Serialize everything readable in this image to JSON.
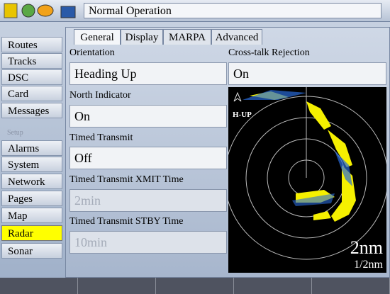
{
  "header": {
    "title": "Normal Operation"
  },
  "sidebar": {
    "items": [
      "Routes",
      "Tracks",
      "DSC",
      "Card",
      "Messages",
      "Setup",
      "Alarms",
      "System",
      "Network",
      "Pages",
      "Map",
      "Radar",
      "Sonar"
    ],
    "selected": "Radar"
  },
  "tabs": [
    "General",
    "Display",
    "MARPA",
    "Advanced"
  ],
  "fields": [
    {
      "label": "Orientation",
      "value": "Heading Up"
    },
    {
      "label": "North Indicator",
      "value": "On"
    },
    {
      "label": "Timed Transmit",
      "value": "Off"
    },
    {
      "label": "Timed Transmit XMIT Time",
      "value": "2min"
    },
    {
      "label": "Timed Transmit STBY Time",
      "value": "10min"
    },
    {
      "label": "Cross-talk Rejection",
      "value": "On"
    }
  ],
  "radar": {
    "mode": "H-UP",
    "range": "2nm",
    "ring": "1/2nm"
  }
}
